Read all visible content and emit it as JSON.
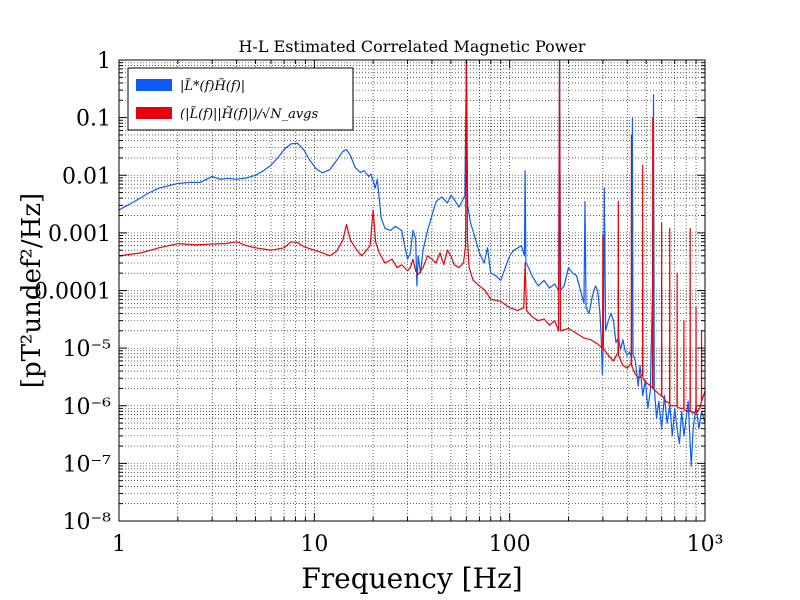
{
  "chart_data": {
    "type": "line",
    "title": "H-L Estimated Correlated Magnetic Power",
    "xlabel": "Frequency [Hz]",
    "ylabel": "[pT²undef²/Hz]",
    "x_scale": "log",
    "y_scale": "log",
    "xlim": [
      1,
      1000
    ],
    "ylim": [
      1e-08,
      1
    ],
    "grid": true,
    "legend_position": "top-left",
    "x_ticks": [
      {
        "value": 1,
        "label": "1"
      },
      {
        "value": 10,
        "label": "10"
      },
      {
        "value": 100,
        "label": "100"
      },
      {
        "value": 1000,
        "label": "10³"
      }
    ],
    "y_ticks": [
      {
        "value": 1,
        "label": "1"
      },
      {
        "value": 0.1,
        "label": "0.1"
      },
      {
        "value": 0.01,
        "label": "0.01"
      },
      {
        "value": 0.001,
        "label": "0.001"
      },
      {
        "value": 0.0001,
        "label": "0.0001"
      },
      {
        "value": 1e-05,
        "label": "10⁻⁵"
      },
      {
        "value": 1e-06,
        "label": "10⁻⁶"
      },
      {
        "value": 1e-07,
        "label": "10⁻⁷"
      },
      {
        "value": 1e-08,
        "label": "10⁻⁸"
      }
    ],
    "series": [
      {
        "name": "|L̃*(f)H̃(f)|",
        "color": "#0a5cf5",
        "points": [
          [
            1.0,
            0.0025
          ],
          [
            1.2,
            0.0035
          ],
          [
            1.4,
            0.0048
          ],
          [
            1.6,
            0.006
          ],
          [
            1.8,
            0.0066
          ],
          [
            2.0,
            0.0072
          ],
          [
            2.3,
            0.0075
          ],
          [
            2.6,
            0.0075
          ],
          [
            2.8,
            0.0085
          ],
          [
            3.0,
            0.0095
          ],
          [
            3.3,
            0.0085
          ],
          [
            3.6,
            0.0088
          ],
          [
            4.0,
            0.0085
          ],
          [
            4.5,
            0.009
          ],
          [
            5.0,
            0.01
          ],
          [
            5.5,
            0.012
          ],
          [
            6.0,
            0.015
          ],
          [
            6.5,
            0.02
          ],
          [
            7.0,
            0.028
          ],
          [
            7.6,
            0.035
          ],
          [
            8.2,
            0.036
          ],
          [
            8.8,
            0.028
          ],
          [
            9.5,
            0.018
          ],
          [
            10.2,
            0.013
          ],
          [
            11.0,
            0.011
          ],
          [
            12.0,
            0.0125
          ],
          [
            13.0,
            0.018
          ],
          [
            14.0,
            0.026
          ],
          [
            14.6,
            0.028
          ],
          [
            15.3,
            0.022
          ],
          [
            16.2,
            0.0135
          ],
          [
            17.2,
            0.0112
          ],
          [
            18.0,
            0.012
          ],
          [
            19.0,
            0.0095
          ],
          [
            19.5,
            0.0105
          ],
          [
            20.5,
            0.006
          ],
          [
            21.0,
            0.0085
          ],
          [
            22.0,
            0.0018
          ],
          [
            23.0,
            0.0012
          ],
          [
            24.5,
            0.0011
          ],
          [
            26.0,
            0.0013
          ],
          [
            28.0,
            0.0011
          ],
          [
            29.0,
            0.0006
          ],
          [
            30.0,
            0.00035
          ],
          [
            31.0,
            0.00045
          ],
          [
            32.0,
            0.0011
          ],
          [
            33.0,
            0.0008
          ],
          [
            33.5,
            0.00012
          ],
          [
            34.0,
            0.0004
          ],
          [
            35.0,
            0.0002
          ],
          [
            36.0,
            0.0005
          ],
          [
            38.0,
            0.0011
          ],
          [
            40.0,
            0.002
          ],
          [
            42.0,
            0.0035
          ],
          [
            45.0,
            0.0042
          ],
          [
            48.0,
            0.0033
          ],
          [
            50.0,
            0.0045
          ],
          [
            52.0,
            0.0038
          ],
          [
            55.0,
            0.0028
          ],
          [
            57.0,
            0.0035
          ],
          [
            59.0,
            0.0045
          ],
          [
            60.0,
            0.9
          ],
          [
            61.0,
            0.003
          ],
          [
            63.0,
            0.0015
          ],
          [
            66.0,
            0.0009
          ],
          [
            70.0,
            0.00045
          ],
          [
            74.0,
            0.0003
          ],
          [
            77.0,
            0.00055
          ],
          [
            80.0,
            0.0002
          ],
          [
            85.0,
            0.00018
          ],
          [
            90.0,
            0.00015
          ],
          [
            95.0,
            0.00025
          ],
          [
            100.0,
            0.0004
          ],
          [
            105.0,
            0.0005
          ],
          [
            110.0,
            0.00055
          ],
          [
            115.0,
            0.0006
          ],
          [
            119.0,
            0.0004
          ],
          [
            120.0,
            0.012
          ],
          [
            121.0,
            0.0003
          ],
          [
            125.0,
            0.00025
          ],
          [
            130.0,
            0.00018
          ],
          [
            140.0,
            0.00012
          ],
          [
            150.0,
            0.00015
          ],
          [
            160.0,
            0.00011
          ],
          [
            170.0,
            0.00013
          ],
          [
            178.0,
            0.0001
          ],
          [
            180.0,
            0.95
          ],
          [
            182.0,
            0.0001
          ],
          [
            190.0,
            0.00012
          ],
          [
            200.0,
            0.00025
          ],
          [
            210.0,
            0.0002
          ],
          [
            220.0,
            0.00018
          ],
          [
            240.0,
            6e-05
          ],
          [
            243.0,
            0.0035
          ],
          [
            246.0,
            5e-05
          ],
          [
            255.0,
            4e-05
          ],
          [
            265.0,
            8e-05
          ],
          [
            275.0,
            0.00012
          ],
          [
            282.0,
            0.0001
          ],
          [
            290.0,
            4e-05
          ],
          [
            295.0,
            1.2e-05
          ],
          [
            298.0,
            3.5e-06
          ],
          [
            302.0,
            1.5e-05
          ],
          [
            305.0,
            0.006
          ],
          [
            310.0,
            2e-05
          ],
          [
            320.0,
            3e-05
          ],
          [
            330.0,
            4e-05
          ],
          [
            340.0,
            3e-05
          ],
          [
            350.0,
            1.25e-05
          ],
          [
            360.0,
            1.5e-05
          ],
          [
            370.0,
            9.5e-06
          ],
          [
            380.0,
            1.4e-05
          ],
          [
            390.0,
            9e-06
          ],
          [
            400.0,
            7.5e-06
          ],
          [
            410.0,
            8.5e-06
          ],
          [
            420.0,
            7e-06
          ],
          [
            425.0,
            0.1
          ],
          [
            428.0,
            8e-06
          ],
          [
            440.0,
            6e-06
          ],
          [
            455.0,
            2.2e-06
          ],
          [
            465.0,
            5e-06
          ],
          [
            480.0,
            1.5e-06
          ],
          [
            495.0,
            2.8e-06
          ],
          [
            510.0,
            9e-07
          ],
          [
            525.0,
            1.8e-06
          ],
          [
            540.0,
            0.00015
          ],
          [
            545.0,
            0.25
          ],
          [
            550.0,
            2e-06
          ],
          [
            565.0,
            6e-07
          ],
          [
            580.0,
            1.2e-06
          ],
          [
            600.0,
            4e-07
          ],
          [
            620.0,
            1.5e-06
          ],
          [
            640.0,
            5e-07
          ],
          [
            660.0,
            1e-06
          ],
          [
            680.0,
            3e-07
          ],
          [
            700.0,
            9e-07
          ],
          [
            720.0,
            4e-07
          ],
          [
            740.0,
            2.2e-07
          ],
          [
            760.0,
            8e-07
          ],
          [
            780.0,
            3e-07
          ],
          [
            800.0,
            6e-07
          ],
          [
            820.0,
            1.2e-06
          ],
          [
            850.0,
            9e-08
          ],
          [
            870.0,
            4e-07
          ],
          [
            900.0,
            1e-06
          ],
          [
            930.0,
            4e-07
          ],
          [
            960.0,
            8e-07
          ],
          [
            1000.0,
            5e-07
          ]
        ]
      },
      {
        "name": "(|L̃(f)||H̃(f)|)/√N_avgs",
        "color": "#e8000b",
        "points": [
          [
            1.0,
            0.0004
          ],
          [
            1.3,
            0.00045
          ],
          [
            1.6,
            0.00055
          ],
          [
            2.0,
            0.00065
          ],
          [
            2.5,
            0.00062
          ],
          [
            3.0,
            0.00064
          ],
          [
            3.5,
            0.00065
          ],
          [
            4.0,
            0.0007
          ],
          [
            4.5,
            0.0006
          ],
          [
            5.0,
            0.00055
          ],
          [
            6.0,
            0.0005
          ],
          [
            7.0,
            0.00055
          ],
          [
            7.6,
            0.0007
          ],
          [
            8.2,
            0.00068
          ],
          [
            8.8,
            0.00058
          ],
          [
            10.0,
            0.0005
          ],
          [
            11.0,
            0.00045
          ],
          [
            12.0,
            0.0004
          ],
          [
            13.0,
            0.00048
          ],
          [
            14.0,
            0.00075
          ],
          [
            14.6,
            0.0014
          ],
          [
            15.3,
            0.00075
          ],
          [
            16.5,
            0.0005
          ],
          [
            17.5,
            0.0004
          ],
          [
            18.5,
            0.0005
          ],
          [
            19.3,
            0.0006
          ],
          [
            20.0,
            0.0025
          ],
          [
            20.6,
            0.0007
          ],
          [
            21.5,
            0.00045
          ],
          [
            23.0,
            0.0003
          ],
          [
            25.0,
            0.00035
          ],
          [
            26.5,
            0.00025
          ],
          [
            28.0,
            0.00028
          ],
          [
            30.0,
            0.00022
          ],
          [
            31.0,
            0.00025
          ],
          [
            32.0,
            0.00035
          ],
          [
            33.0,
            0.00022
          ],
          [
            34.0,
            0.00019
          ],
          [
            36.0,
            0.00025
          ],
          [
            38.0,
            0.0004
          ],
          [
            40.0,
            0.00035
          ],
          [
            42.0,
            0.0003
          ],
          [
            44.0,
            0.00045
          ],
          [
            46.0,
            0.00028
          ],
          [
            48.0,
            0.0005
          ],
          [
            50.0,
            0.0004
          ],
          [
            52.0,
            0.00028
          ],
          [
            55.0,
            0.00025
          ],
          [
            58.0,
            0.0003
          ],
          [
            59.5,
            0.0006
          ],
          [
            60.0,
            0.95
          ],
          [
            60.8,
            0.0008
          ],
          [
            62.0,
            0.00025
          ],
          [
            65.0,
            0.00015
          ],
          [
            70.0,
            0.00012
          ],
          [
            75.0,
            0.0001
          ],
          [
            80.0,
            7e-05
          ],
          [
            90.0,
            6.5e-05
          ],
          [
            100.0,
            5e-05
          ],
          [
            110.0,
            4.5e-05
          ],
          [
            118.0,
            5e-05
          ],
          [
            120.0,
            0.0003
          ],
          [
            122.0,
            4.5e-05
          ],
          [
            130.0,
            3.5e-05
          ],
          [
            140.0,
            3e-05
          ],
          [
            150.0,
            3.2e-05
          ],
          [
            160.0,
            2.5e-05
          ],
          [
            170.0,
            3e-05
          ],
          [
            178.0,
            2e-05
          ],
          [
            180.0,
            0.95
          ],
          [
            182.0,
            2e-05
          ],
          [
            200.0,
            2.2e-05
          ],
          [
            220.0,
            1.8e-05
          ],
          [
            240.0,
            1.5e-05
          ],
          [
            260.0,
            1.4e-05
          ],
          [
            280.0,
            1.2e-05
          ],
          [
            299.0,
            1e-05
          ],
          [
            300.0,
            0.0009
          ],
          [
            301.0,
            1e-05
          ],
          [
            320.0,
            7.5e-06
          ],
          [
            340.0,
            6e-06
          ],
          [
            359.0,
            8.5e-06
          ],
          [
            360.0,
            0.0035
          ],
          [
            361.0,
            7.5e-06
          ],
          [
            380.0,
            5e-06
          ],
          [
            400.0,
            4.5e-06
          ],
          [
            419.0,
            5.5e-06
          ],
          [
            420.0,
            0.05
          ],
          [
            421.0,
            5e-06
          ],
          [
            440.0,
            3.5e-06
          ],
          [
            460.0,
            3e-06
          ],
          [
            479.0,
            3.5e-06
          ],
          [
            480.0,
            0.015
          ],
          [
            481.0,
            3e-06
          ],
          [
            500.0,
            2.5e-06
          ],
          [
            520.0,
            2.3e-06
          ],
          [
            539.0,
            2e-06
          ],
          [
            540.0,
            0.1
          ],
          [
            541.0,
            2e-06
          ],
          [
            560.0,
            1.8e-06
          ],
          [
            580.0,
            1.6e-06
          ],
          [
            599.0,
            1.5e-06
          ],
          [
            600.0,
            0.0015
          ],
          [
            601.0,
            1.5e-06
          ],
          [
            630.0,
            1.2e-06
          ],
          [
            659.0,
            1.1e-06
          ],
          [
            660.0,
            0.0012
          ],
          [
            661.0,
            1e-06
          ],
          [
            690.0,
            1e-06
          ],
          [
            719.0,
            1e-06
          ],
          [
            720.0,
            0.0002
          ],
          [
            721.0,
            9.5e-07
          ],
          [
            750.0,
            9e-07
          ],
          [
            779.0,
            9e-07
          ],
          [
            780.0,
            3e-05
          ],
          [
            781.0,
            8.5e-07
          ],
          [
            820.0,
            8e-07
          ],
          [
            839.0,
            8e-07
          ],
          [
            840.0,
            0.0012
          ],
          [
            841.0,
            8e-07
          ],
          [
            870.0,
            7.5e-07
          ],
          [
            899.0,
            8e-07
          ],
          [
            900.0,
            5e-05
          ],
          [
            901.0,
            7.5e-07
          ],
          [
            940.0,
            9e-07
          ],
          [
            959.0,
            1.2e-06
          ],
          [
            960.0,
            2e-05
          ],
          [
            961.0,
            1.2e-06
          ],
          [
            1000.0,
            1.8e-06
          ]
        ]
      }
    ]
  }
}
